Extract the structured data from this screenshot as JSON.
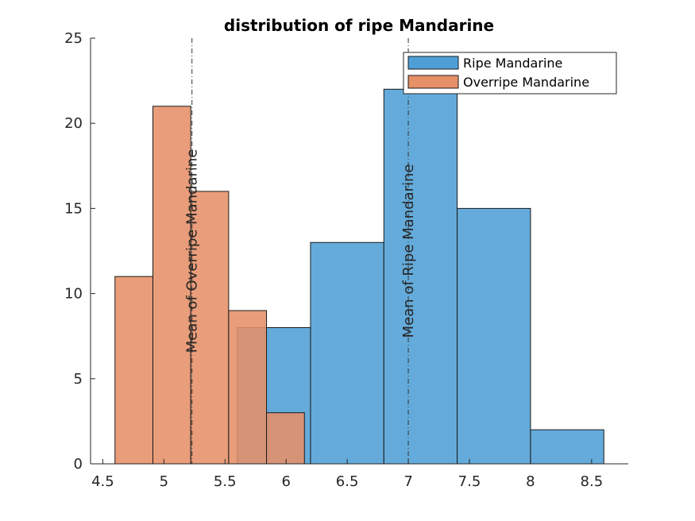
{
  "chart_data": {
    "type": "bar",
    "title": "distribution of ripe Mandarine",
    "xlabel": "",
    "ylabel": "",
    "xlim": [
      4.4,
      8.8
    ],
    "ylim": [
      0,
      25
    ],
    "xticks": [
      "4.5",
      "5",
      "5.5",
      "6",
      "6.5",
      "7",
      "7.5",
      "8",
      "8.5"
    ],
    "xtick_values": [
      4.5,
      5,
      5.5,
      6,
      6.5,
      7,
      7.5,
      8,
      8.5
    ],
    "yticks": [
      "0",
      "5",
      "10",
      "15",
      "20",
      "25"
    ],
    "ytick_values": [
      0,
      5,
      10,
      15,
      20,
      25
    ],
    "grid": false,
    "legend_position": "top-right",
    "series": [
      {
        "name": "Ripe Mandarine",
        "color": "#4f9fd6",
        "bin_edges": [
          5.6,
          6.2,
          6.8,
          7.4,
          8.0,
          8.6
        ],
        "values": [
          8,
          13,
          22,
          15,
          2
        ],
        "mean": 7.0,
        "mean_label": "Mean of Ripe Mandarine"
      },
      {
        "name": "Overripe Mandarine",
        "color": "#e69068",
        "bin_edges": [
          4.6,
          4.91,
          5.22,
          5.53,
          5.84,
          6.15
        ],
        "values": [
          11,
          21,
          16,
          9,
          3
        ],
        "mean": 5.23,
        "mean_label": "Mean of Overripe Mandarine"
      }
    ]
  }
}
